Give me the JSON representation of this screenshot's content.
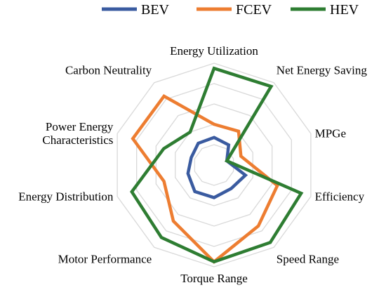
{
  "chart_data": {
    "type": "radar",
    "axes": [
      "Energy Utilization",
      "Net Energy Saving",
      "MPGe",
      "Efficiency",
      "Speed Range",
      "Torque Range",
      "Motor Performance",
      "Energy Distribution",
      "Power Energy Characteristics",
      "Carbon Neutrality"
    ],
    "axis_label_lines": [
      [
        "Energy Utilization"
      ],
      [
        "Net Energy Saving"
      ],
      [
        "MPGe"
      ],
      [
        "Efficiency"
      ],
      [
        "Speed Range"
      ],
      [
        "Torque Range"
      ],
      [
        "Motor Performance"
      ],
      [
        "Energy Distribution"
      ],
      [
        "Power Energy",
        "Characteristics"
      ],
      [
        "Carbon Neutrality"
      ]
    ],
    "rmax": 5,
    "gridlines": [
      1,
      2,
      3,
      4,
      5
    ],
    "legend_position": "top",
    "series": [
      {
        "name": "BEV",
        "color": "#3a5ba0",
        "values": [
          1.35,
          1.22,
          0.66,
          1.62,
          1.43,
          1.6,
          1.61,
          1.35,
          1.18,
          1.32
        ]
      },
      {
        "name": "FCEV",
        "color": "#ed7d31",
        "values": [
          2.0,
          2.05,
          1.39,
          3.27,
          3.7,
          4.75,
          3.4,
          2.59,
          4.2,
          4.18
        ]
      },
      {
        "name": "HEV",
        "color": "#2e7d32",
        "values": [
          4.75,
          4.77,
          0.66,
          4.5,
          4.7,
          4.75,
          4.4,
          4.25,
          2.6,
          2.0
        ]
      }
    ]
  }
}
